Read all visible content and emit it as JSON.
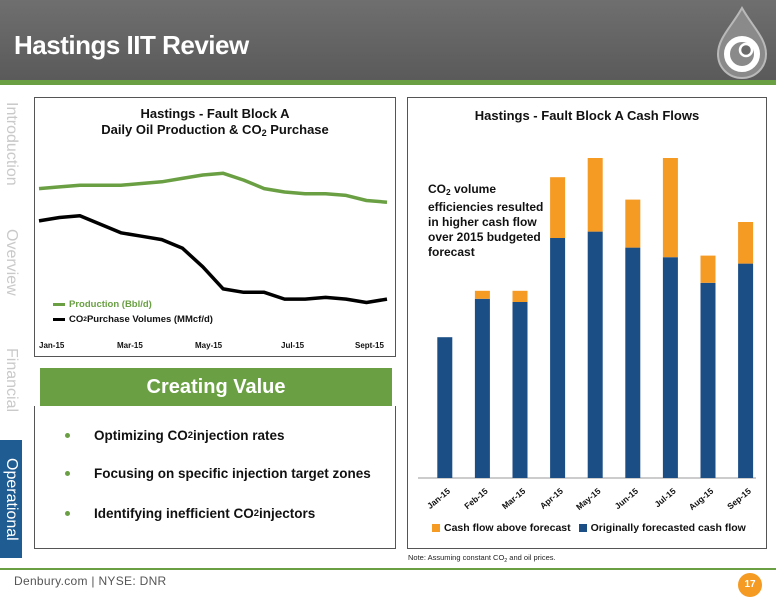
{
  "header": {
    "title": "Hastings IIT Review"
  },
  "side_tabs": [
    {
      "label": "Introduction",
      "active": false
    },
    {
      "label": "Overview",
      "active": false
    },
    {
      "label": "Financial",
      "active": false
    },
    {
      "label": "Operational",
      "active": true
    }
  ],
  "line_chart": {
    "title_line1": "Hastings - Fault Block A",
    "title_line2_pre": "Daily Oil Production & CO",
    "title_line2_sub": "2",
    "title_line2_post": " Purchase",
    "legend_production": "Production (Bbl/d)",
    "legend_co2_pre": "CO",
    "legend_co2_sub": "2",
    "legend_co2_post": " Purchase Volumes (MMcf/d)",
    "x_labels": [
      "Jan-15",
      "Mar-15",
      "May-15",
      "Jul-15",
      "Sept-15"
    ]
  },
  "creating_value": {
    "heading": "Creating Value",
    "bullets": [
      {
        "pre": "Optimizing CO",
        "sub": "2",
        "post": " injection rates"
      },
      {
        "pre": "Focusing on specific injection target zones",
        "sub": "",
        "post": ""
      },
      {
        "pre": "Identifying inefficient CO",
        "sub": "2",
        "post": " injectors"
      }
    ]
  },
  "chart_data": [
    {
      "type": "line",
      "title": "Hastings - Fault Block A Daily Oil Production & CO2 Purchase",
      "x_tick_labels": [
        "Jan-15",
        "Mar-15",
        "May-15",
        "Jul-15",
        "Sept-15"
      ],
      "series": [
        {
          "name": "Production (Bbl/d)",
          "color": "#6aa043",
          "values": [
            0.82,
            0.83,
            0.84,
            0.84,
            0.84,
            0.85,
            0.86,
            0.88,
            0.9,
            0.91,
            0.87,
            0.82,
            0.8,
            0.79,
            0.79,
            0.78,
            0.75,
            0.74
          ]
        },
        {
          "name": "CO2 Purchase Volumes (MMcf/d)",
          "color": "#000000",
          "values": [
            0.63,
            0.65,
            0.66,
            0.61,
            0.56,
            0.54,
            0.52,
            0.47,
            0.36,
            0.23,
            0.21,
            0.21,
            0.17,
            0.17,
            0.18,
            0.17,
            0.15,
            0.17
          ]
        }
      ],
      "grid": false
    },
    {
      "type": "bar",
      "stacked": true,
      "title": "Hastings - Fault Block A Cash Flows",
      "categories": [
        "Jan-15",
        "Feb-15",
        "Mar-15",
        "Apr-15",
        "May-15",
        "Jun-15",
        "Jul-15",
        "Aug-15",
        "Sep-15"
      ],
      "series": [
        {
          "name": "Originally forecasted cash flow",
          "color": "#1c4e86",
          "values": [
            44,
            56,
            55,
            75,
            77,
            72,
            69,
            61,
            67
          ]
        },
        {
          "name": "Cash flow above forecast",
          "color": "#f59a23",
          "values": [
            0,
            2.5,
            3.5,
            19,
            23,
            15,
            31,
            8.5,
            13
          ]
        }
      ],
      "ylim": [
        0,
        100
      ],
      "legend": "bottom"
    }
  ],
  "cash_flow_panel": {
    "annotation_pre": "CO",
    "annotation_sub": "2",
    "annotation_post": " volume efficiencies resulted in higher cash flow over 2015 budgeted forecast",
    "legend_above": "Cash flow above forecast",
    "legend_original": "Originally forecasted cash flow"
  },
  "note": {
    "pre": "Note: Assuming constant CO",
    "sub": "2",
    "post": " and oil prices."
  },
  "footer": {
    "text": "Denbury.com | NYSE: DNR",
    "page_number": "17"
  },
  "colors": {
    "green": "#6aa043",
    "blue": "#1c4e86",
    "orange": "#f59a23",
    "header_gray": "#636363"
  }
}
